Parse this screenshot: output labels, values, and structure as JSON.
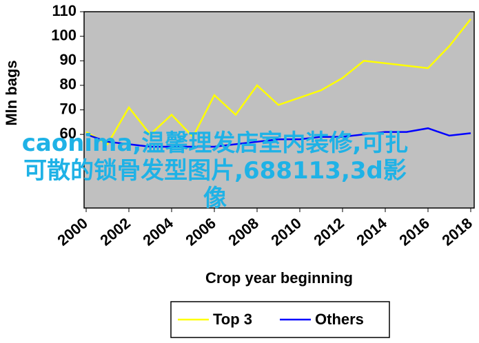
{
  "chart_data": {
    "type": "line",
    "y_label": "Mln bags",
    "x_label": "Crop year beginning",
    "x": [
      2000,
      2001,
      2002,
      2003,
      2004,
      2005,
      2006,
      2007,
      2008,
      2009,
      2010,
      2011,
      2012,
      2013,
      2014,
      2015,
      2016,
      2017,
      2018
    ],
    "series": [
      {
        "name": "Top 3",
        "color": "#ffff00",
        "values": [
          61,
          56,
          71,
          60,
          68,
          59,
          76,
          68,
          80,
          72,
          75,
          78,
          83,
          90,
          89,
          88,
          87,
          96,
          107
        ]
      },
      {
        "name": "Others",
        "color": "#0000ff",
        "values": [
          60,
          57,
          56,
          55,
          55,
          55,
          55,
          56,
          57,
          58,
          58,
          59,
          59,
          60,
          61,
          61,
          62.5,
          59.5,
          60.5
        ]
      }
    ],
    "xlim": [
      2000,
      2018
    ],
    "xticks": [
      2000,
      2002,
      2004,
      2006,
      2008,
      2010,
      2012,
      2014,
      2016,
      2018
    ],
    "ylim": [
      30,
      110
    ],
    "yticks": [
      60,
      70,
      80,
      90,
      100,
      110
    ],
    "plot_color": "#c0c0c0",
    "overlay_text": "caonima,温馨理发店室内装修,可扎可散的锁骨发型图片,688113,3d影像"
  }
}
